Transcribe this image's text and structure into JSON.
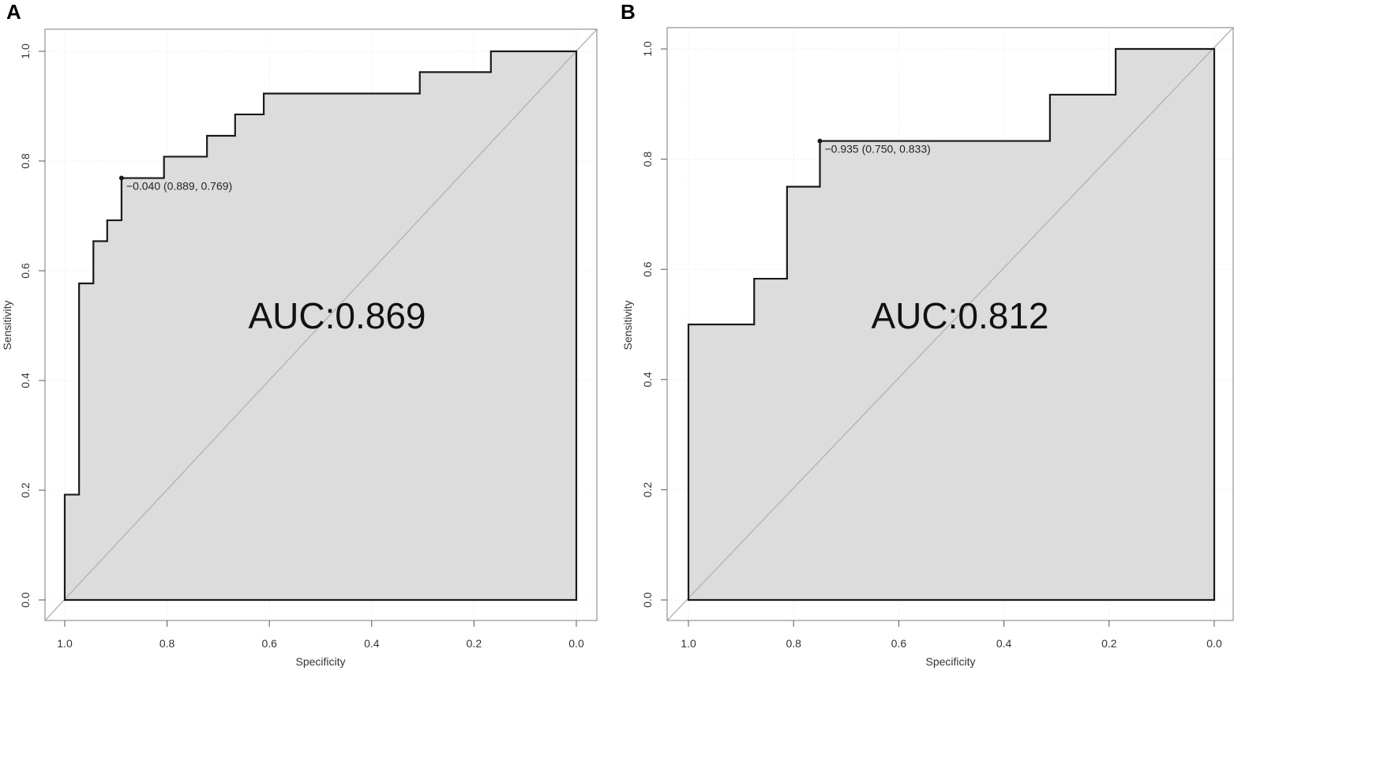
{
  "chart_data": [
    {
      "panel": "A",
      "type": "line",
      "xlabel": "Specificity",
      "ylabel": "Sensitivity",
      "xlim": [
        1.0,
        0.0
      ],
      "ylim": [
        0.0,
        1.0
      ],
      "x_ticks": [
        "1.0",
        "0.8",
        "0.6",
        "0.4",
        "0.2",
        "0.0"
      ],
      "y_ticks": [
        "0.0",
        "0.2",
        "0.4",
        "0.6",
        "0.8",
        "1.0"
      ],
      "grid": true,
      "annotation": "AUC:0.869",
      "threshold": {
        "x": 0.889,
        "y": 0.769,
        "label": "−0.040 (0.889, 0.769)"
      },
      "roc": {
        "x": [
          1.0,
          1.0,
          0.972,
          0.972,
          0.944,
          0.944,
          0.917,
          0.917,
          0.889,
          0.889,
          0.806,
          0.806,
          0.722,
          0.722,
          0.667,
          0.667,
          0.611,
          0.611,
          0.306,
          0.306,
          0.167,
          0.167,
          0.0,
          0.0
        ],
        "y": [
          0.0,
          0.192,
          0.192,
          0.577,
          0.577,
          0.654,
          0.654,
          0.692,
          0.692,
          0.769,
          0.769,
          0.808,
          0.808,
          0.846,
          0.846,
          0.885,
          0.885,
          0.923,
          0.923,
          0.962,
          0.962,
          1.0,
          1.0,
          0.0
        ]
      }
    },
    {
      "panel": "B",
      "type": "line",
      "xlabel": "Specificity",
      "ylabel": "Sensitivity",
      "xlim": [
        1.0,
        0.0
      ],
      "ylim": [
        0.0,
        1.0
      ],
      "x_ticks": [
        "1.0",
        "0.8",
        "0.6",
        "0.4",
        "0.2",
        "0.0"
      ],
      "y_ticks": [
        "0.0",
        "0.2",
        "0.4",
        "0.6",
        "0.8",
        "1.0"
      ],
      "grid": true,
      "annotation": "AUC:0.812",
      "threshold": {
        "x": 0.75,
        "y": 0.833,
        "label": "−0.935 (0.750, 0.833)"
      },
      "roc": {
        "x": [
          1.0,
          1.0,
          0.875,
          0.875,
          0.8125,
          0.8125,
          0.75,
          0.75,
          0.3125,
          0.3125,
          0.1875,
          0.1875,
          0.0,
          0.0
        ],
        "y": [
          0.0,
          0.5,
          0.5,
          0.583,
          0.583,
          0.75,
          0.75,
          0.833,
          0.833,
          0.917,
          0.917,
          1.0,
          1.0,
          0.0
        ]
      }
    }
  ],
  "colors": {
    "fill": "#dcdcdc",
    "curve": "#1a1a1a",
    "diagonal": "#b4b4b4",
    "frame": "#9a9a9a",
    "grid": "#ececec"
  }
}
